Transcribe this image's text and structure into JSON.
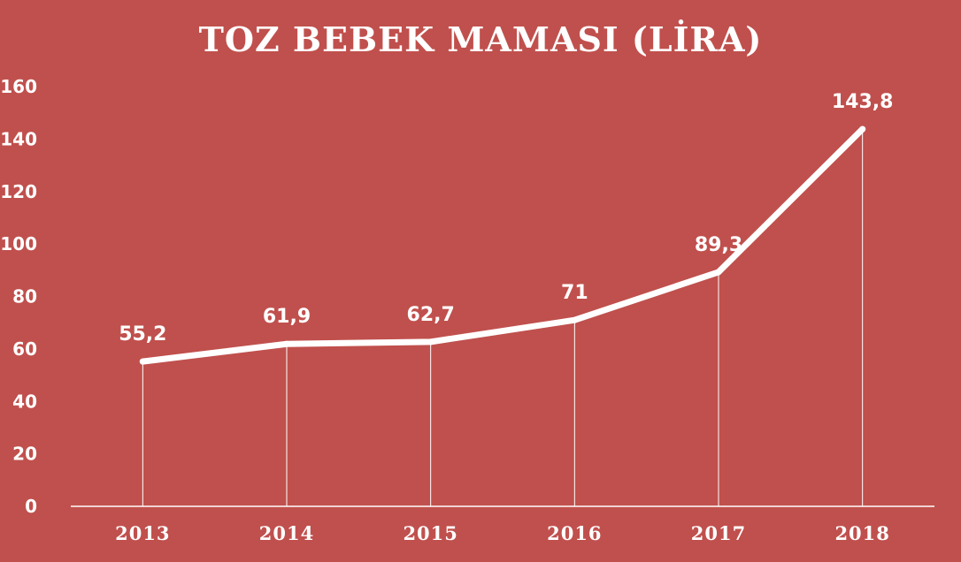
{
  "chart_data": {
    "type": "line",
    "title": "TOZ BEBEK MAMASI (LİRA)",
    "categories": [
      "2013",
      "2014",
      "2015",
      "2016",
      "2017",
      "2018"
    ],
    "values": [
      55.2,
      61.9,
      62.7,
      71,
      89.3,
      143.8
    ],
    "data_labels": [
      "55,2",
      "61,9",
      "62,7",
      "71",
      "89,3",
      "143,8"
    ],
    "ylim": [
      0,
      160
    ],
    "yticks": [
      0,
      20,
      40,
      60,
      80,
      100,
      120,
      140,
      160
    ],
    "xlabel": "",
    "ylabel": "",
    "grid": false,
    "drop_lines": true,
    "colors": {
      "background": "#c0504d",
      "line": "#ffffff",
      "text": "#ffffff"
    }
  }
}
